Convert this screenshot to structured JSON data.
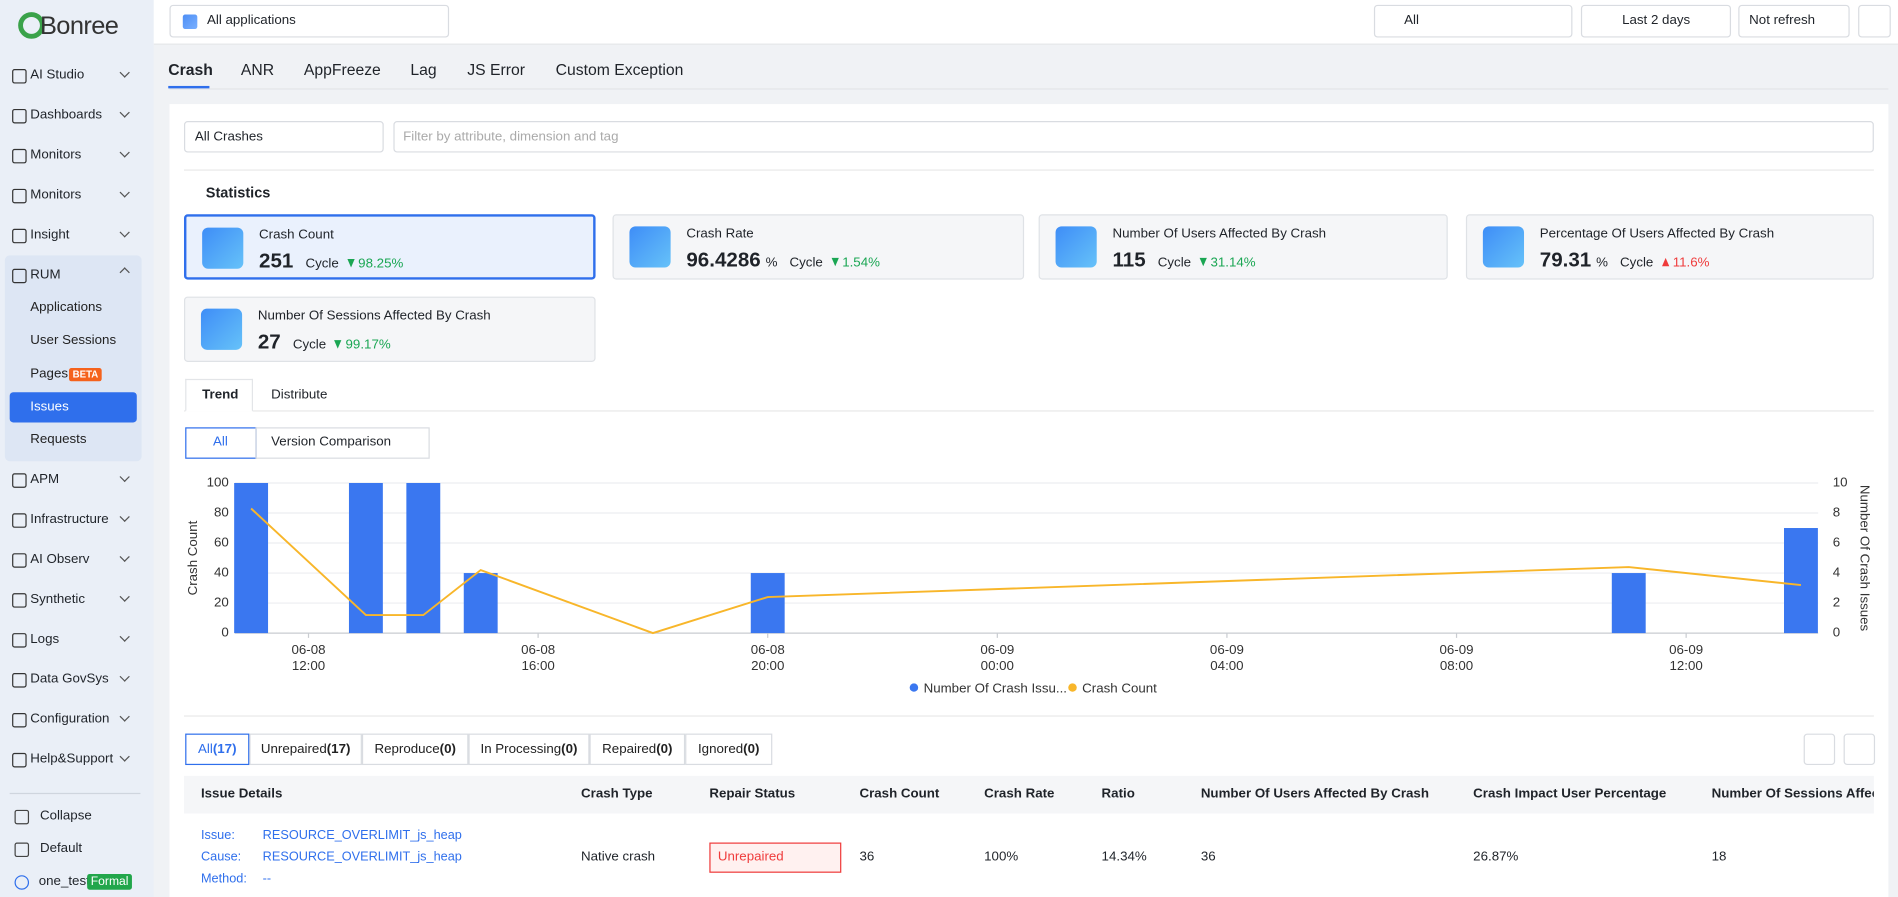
{
  "sidebar": {
    "logo": "Bonree",
    "menu": [
      "AI Studio",
      "Dashboards",
      "Monitors",
      "Monitors",
      "Insight",
      "RUM",
      "APM",
      "Infrastructure",
      "AI Observ",
      "Synthetic",
      "Logs",
      "Data GovSys",
      "Configuration",
      "Help&Support"
    ],
    "rum_children": [
      "Applications",
      "User Sessions",
      "Pages",
      "Issues",
      "Requests"
    ],
    "pages_badge": "BETA",
    "footer": [
      "Collapse",
      "Default",
      "one_test"
    ],
    "user_badge": "Formal"
  },
  "topbar": {
    "app_select": "All applications",
    "env": "All",
    "range": "Last 2 days",
    "refresh": "Not refresh"
  },
  "tabs": [
    "Crash",
    "ANR",
    "AppFreeze",
    "Lag",
    "JS Error",
    "Custom Exception"
  ],
  "filter": {
    "select": "All Crashes",
    "placeholder": "Filter by attribute, dimension and tag"
  },
  "statistics": {
    "title": "Statistics",
    "cards": [
      {
        "label": "Crash Count",
        "value": "251",
        "cycle": "Cycle",
        "change": "98.25%",
        "direction": "down"
      },
      {
        "label": "Crash Rate",
        "value": "96.4286",
        "unit": "%",
        "cycle": "Cycle",
        "change": "1.54%",
        "direction": "down"
      },
      {
        "label": "Number Of Users Affected By Crash",
        "value": "115",
        "cycle": "Cycle",
        "change": "31.14%",
        "direction": "down"
      },
      {
        "label": "Percentage Of Users Affected By Crash",
        "value": "79.31",
        "unit": "%",
        "cycle": "Cycle",
        "change": "11.6%",
        "direction": "up"
      },
      {
        "label": "Number Of Sessions Affected By Crash",
        "value": "27",
        "cycle": "Cycle",
        "change": "99.17%",
        "direction": "down"
      }
    ]
  },
  "trend_tabs": [
    "Trend",
    "Distribute"
  ],
  "view_buttons": [
    "All",
    "Version Comparison"
  ],
  "chart_data": {
    "type": "combo",
    "y_label": "Crash Count",
    "y2_label": "Number Of Crash Issues",
    "xlim": [
      "06-08 10:43",
      "06-09 14:18"
    ],
    "xticks": [
      "06-08 12:00",
      "06-08 16:00",
      "06-08 20:00",
      "06-09 00:00",
      "06-09 04:00",
      "06-09 08:00",
      "06-09 12:00"
    ],
    "ylim": [
      0,
      100
    ],
    "yticks": [
      0,
      20,
      40,
      60,
      80,
      100
    ],
    "y2lim": [
      0,
      10
    ],
    "y2ticks": [
      0,
      2,
      4,
      6,
      8,
      10
    ],
    "grid": true,
    "series": [
      {
        "name": "Number Of Crash Issu...",
        "type": "bar",
        "axis": "y2",
        "color": "#3a77f0",
        "x": [
          "06-08 11:00",
          "06-08 13:00",
          "06-08 14:00",
          "06-08 15:00",
          "06-08 20:00",
          "06-09 11:00",
          "06-09 14:00"
        ],
        "values": [
          10,
          10,
          10,
          4,
          4,
          4,
          7
        ]
      },
      {
        "name": "Crash Count",
        "type": "line",
        "color": "#f8b62a",
        "x": [
          "06-08 11:00",
          "06-08 13:00",
          "06-08 14:00",
          "06-08 15:00",
          "06-08 18:00",
          "06-08 20:00",
          "06-09 11:00",
          "06-09 14:00"
        ],
        "values": [
          83,
          12,
          12,
          42,
          0,
          24,
          44,
          32
        ]
      }
    ]
  },
  "issue_filters": [
    {
      "label": "All",
      "count": "(17)"
    },
    {
      "label": "Unrepaired",
      "count": "(17)"
    },
    {
      "label": "Reproduce",
      "count": "(0)"
    },
    {
      "label": "In Processing",
      "count": "(0)"
    },
    {
      "label": "Repaired",
      "count": "(0)"
    },
    {
      "label": "Ignored",
      "count": "(0)"
    }
  ],
  "table": {
    "headers": [
      "Issue Details",
      "Crash Type",
      "Repair Status",
      "Crash Count",
      "Crash Rate",
      "Ratio",
      "Number Of Users Affected By Crash",
      "Crash Impact User Percentage",
      "Number Of Sessions Affected By Crash"
    ],
    "rows": [
      {
        "issue_label": "Issue:",
        "issue": "RESOURCE_OVERLIMIT_js_heap",
        "cause_label": "Cause:",
        "cause": "RESOURCE_OVERLIMIT_js_heap",
        "method_label": "Method:",
        "method": "--",
        "cells": [
          "Native crash",
          "Unrepaired",
          "36",
          "100%",
          "14.34%",
          "36",
          "26.87%",
          "18"
        ]
      }
    ]
  }
}
